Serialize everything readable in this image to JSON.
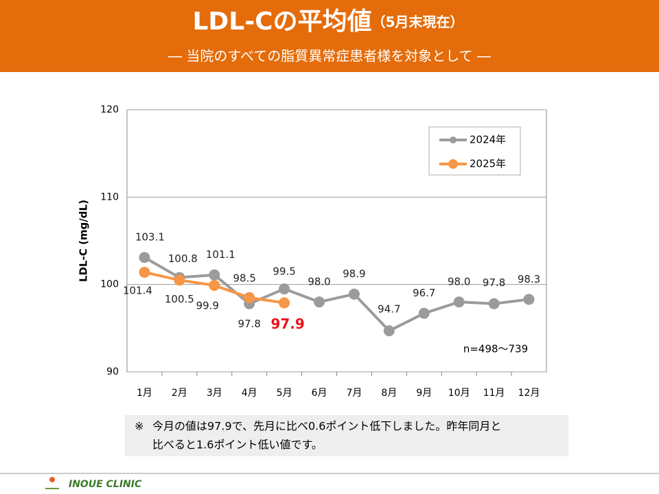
{
  "header": {
    "title": "LDL-Cの平均値",
    "title_note": "（5月末現在）",
    "subtitle": "―  当院のすべての脂質異常症患者様を対象として  ―"
  },
  "chart_data": {
    "type": "line",
    "categories": [
      "1月",
      "2月",
      "3月",
      "4月",
      "5月",
      "6月",
      "7月",
      "8月",
      "9月",
      "10月",
      "11月",
      "12月"
    ],
    "series": [
      {
        "name": "2024年",
        "color": "#9b9b9b",
        "values": [
          103.1,
          100.8,
          101.1,
          97.8,
          99.5,
          98.0,
          98.9,
          94.7,
          96.7,
          98.0,
          97.8,
          98.3
        ],
        "value_labels": [
          "103.1",
          "100.8",
          "101.1",
          "97.8",
          "99.5",
          "98.0",
          "98.9",
          "94.7",
          "96.7",
          "98.0",
          "97.8",
          "98.3"
        ]
      },
      {
        "name": "2025年",
        "color": "#f79646",
        "values": [
          101.4,
          100.5,
          99.9,
          98.5,
          97.9,
          null,
          null,
          null,
          null,
          null,
          null,
          null
        ],
        "value_labels": [
          "101.4",
          "100.5",
          "99.9",
          "98.5",
          "97.9",
          null,
          null,
          null,
          null,
          null,
          null,
          null
        ]
      }
    ],
    "ylim": [
      90,
      120
    ],
    "yticks": [
      90,
      100,
      110,
      120
    ],
    "grid": true,
    "legend": "upper right",
    "ylabel": "LDL-C (mg/dL)",
    "annotation": "n=498～739",
    "highlight_color": "#e8141c"
  },
  "note": {
    "mark": "※",
    "lines": [
      "今月の値は97.9で、先月に比べ0.6ポイント低下しました。昨年同月と",
      "比べると1.6ポイント低い値です。"
    ]
  },
  "footer": {
    "clinic": "INOUE CLINIC"
  }
}
